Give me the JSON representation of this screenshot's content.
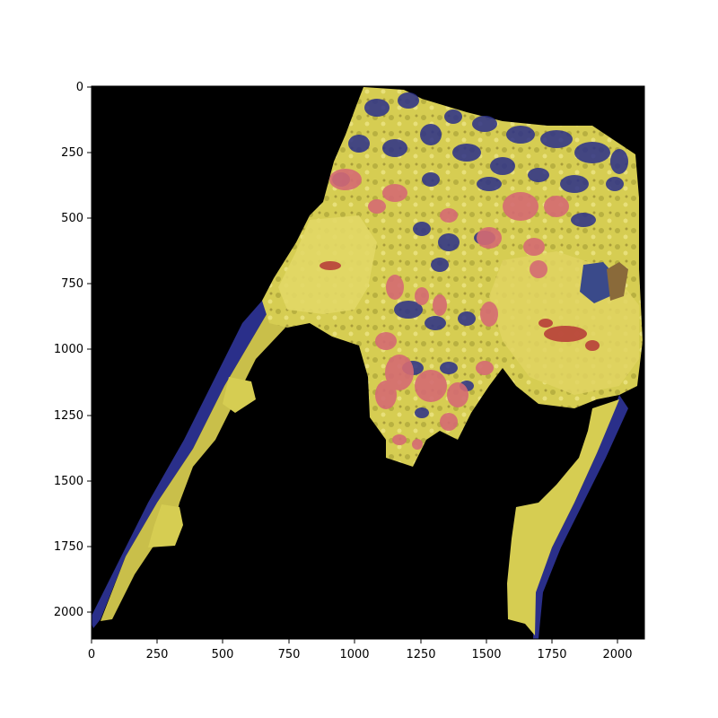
{
  "figure": {
    "content": "segmentation overlay on tissue image",
    "background_color": "#000000",
    "colors": {
      "tissue_yellow": "#d9d050",
      "region_blue": "#2a2f8a",
      "region_red": "#d56b73",
      "edge_orange": "#d8823c"
    }
  },
  "axes": {
    "xlim": [
      0,
      2100
    ],
    "ylim": [
      2100,
      0
    ],
    "x_ticks": [
      "0",
      "250",
      "500",
      "750",
      "1000",
      "1250",
      "1500",
      "1750",
      "2000"
    ],
    "y_ticks": [
      "0",
      "250",
      "500",
      "750",
      "1000",
      "1250",
      "1500",
      "1750",
      "2000"
    ]
  }
}
